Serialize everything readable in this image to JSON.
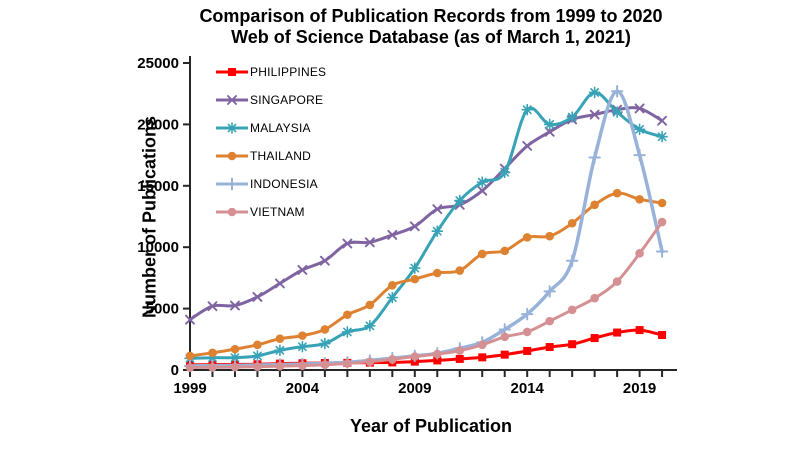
{
  "title": {
    "line1": "Comparison of Publication Records from 1999 to 2020",
    "line2": "Web of Science Database (as of March 1, 2021)"
  },
  "y_axis": {
    "title": "Number of Publications",
    "tick_labels": [
      "0",
      "5000",
      "10000",
      "15000",
      "20000",
      "25000"
    ],
    "min": 0,
    "max": 25000,
    "step": 5000
  },
  "x_axis": {
    "title": "Year of Publication",
    "labeled_ticks": [
      "1999",
      "2004",
      "2009",
      "2014",
      "2019"
    ],
    "start": 1999,
    "end": 2020
  },
  "chart_data": {
    "type": "line",
    "smoothed": true,
    "title": "Comparison of Publication Records from 1999 to 2020 — Web of Science Database (as of March 1, 2021)",
    "xlabel": "Year of Publication",
    "ylabel": "Number of Publications",
    "ylim": [
      0,
      25000
    ],
    "grid": false,
    "legend_position": "inside-top-left",
    "x": [
      1999,
      2000,
      2001,
      2002,
      2003,
      2004,
      2005,
      2006,
      2007,
      2008,
      2009,
      2010,
      2011,
      2012,
      2013,
      2014,
      2015,
      2016,
      2017,
      2018,
      2019,
      2020
    ],
    "series": [
      {
        "name": "PHILIPPINES",
        "color": "#FF0000",
        "marker": "square",
        "values": [
          420,
          440,
          450,
          470,
          520,
          550,
          570,
          580,
          600,
          620,
          680,
          780,
          900,
          1030,
          1250,
          1550,
          1870,
          2100,
          2600,
          3050,
          3250,
          2850
        ]
      },
      {
        "name": "SINGAPORE",
        "color": "#8064A2",
        "marker": "x",
        "values": [
          4100,
          5200,
          5250,
          5950,
          7050,
          8150,
          8900,
          10300,
          10400,
          11000,
          11700,
          13100,
          13450,
          14600,
          16400,
          18250,
          19400,
          20400,
          20800,
          21200,
          21300,
          20300
        ]
      },
      {
        "name": "MALAYSIA",
        "color": "#38A3B6",
        "marker": "asterisk",
        "values": [
          950,
          1000,
          1000,
          1150,
          1600,
          1900,
          2150,
          3100,
          3600,
          5900,
          8300,
          11300,
          13800,
          15300,
          16100,
          21200,
          20000,
          20600,
          22600,
          21000,
          19600,
          19000
        ]
      },
      {
        "name": "THAILAND",
        "color": "#DE8231",
        "marker": "circle",
        "values": [
          1150,
          1400,
          1700,
          2050,
          2550,
          2800,
          3300,
          4500,
          5300,
          6900,
          7400,
          7900,
          8100,
          9450,
          9700,
          10800,
          10900,
          11950,
          13450,
          14400,
          13900,
          13600
        ]
      },
      {
        "name": "INDONESIA",
        "color": "#98B2D9",
        "marker": "plus",
        "values": [
          330,
          350,
          370,
          400,
          440,
          480,
          540,
          630,
          780,
          960,
          1150,
          1360,
          1770,
          2250,
          3300,
          4550,
          6400,
          8900,
          17300,
          22700,
          17500,
          9650
        ]
      },
      {
        "name": "VIETNAM",
        "color": "#D59093",
        "marker": "circle",
        "values": [
          200,
          220,
          240,
          270,
          320,
          360,
          430,
          530,
          680,
          870,
          1100,
          1300,
          1580,
          2050,
          2700,
          3100,
          3980,
          4900,
          5850,
          7200,
          9500,
          12050
        ]
      }
    ]
  }
}
